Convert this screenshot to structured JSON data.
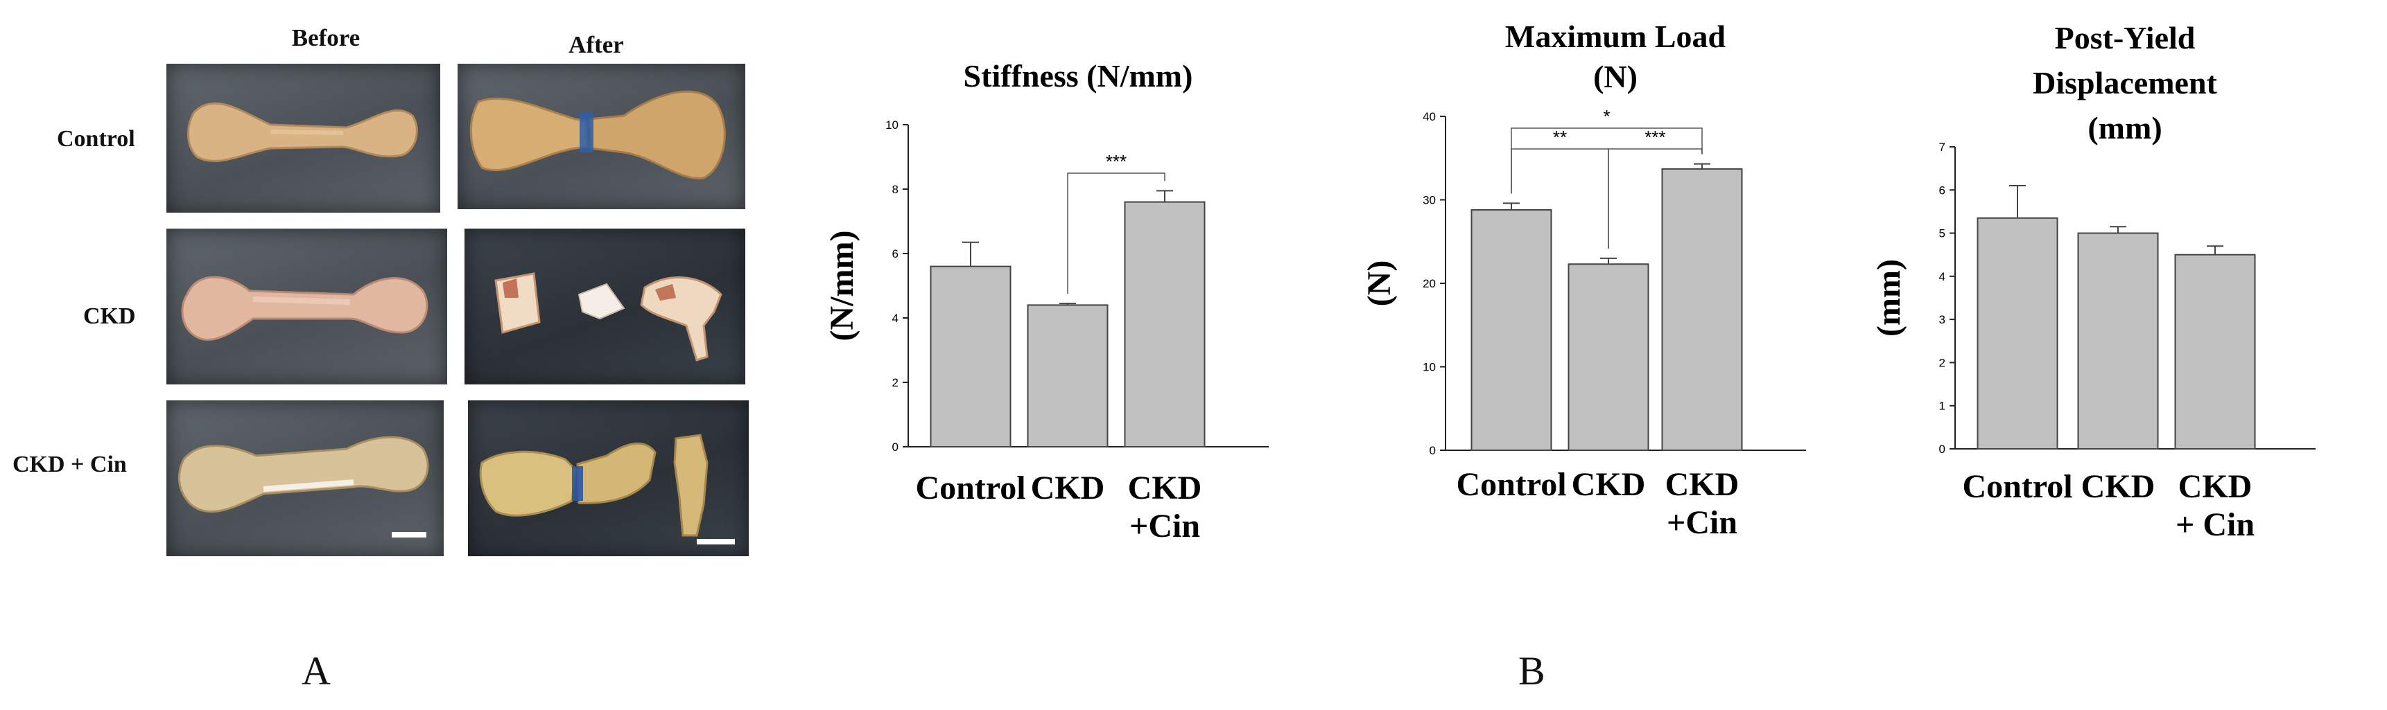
{
  "panel_a": {
    "col_headers": [
      "Before",
      "After"
    ],
    "row_labels": [
      "Control",
      "CKD",
      "CKD + Cin"
    ],
    "letter": "A"
  },
  "panel_b": {
    "letter": "B"
  },
  "colors": {
    "bar_fill": "#c0c0c0",
    "bar_stroke": "#444444",
    "axis": "#222222"
  },
  "chart_data": [
    {
      "type": "bar",
      "title": [
        "Stiffness (N/mm)"
      ],
      "ylabel": "(N/mm)",
      "categories": [
        [
          "Control"
        ],
        [
          "CKD"
        ],
        [
          "CKD",
          "+Cin"
        ]
      ],
      "values": [
        5.6,
        4.4,
        7.6
      ],
      "errors": [
        0.75,
        0.05,
        0.35
      ],
      "ylim": [
        0,
        10
      ],
      "yticks": [
        0,
        2,
        4,
        6,
        8,
        10
      ],
      "tick_labels": [
        "0",
        "2",
        "4",
        "6",
        "8",
        "10"
      ],
      "grid": false,
      "significance": [
        {
          "from": 1,
          "to": 2,
          "label": "***"
        }
      ]
    },
    {
      "type": "bar",
      "title": [
        "Maximum Load",
        "(N)"
      ],
      "ylabel": "(N)",
      "categories": [
        [
          "Control"
        ],
        [
          "CKD"
        ],
        [
          "CKD",
          "+Cin"
        ]
      ],
      "values": [
        28.8,
        22.3,
        33.7
      ],
      "errors": [
        0.8,
        0.7,
        0.6
      ],
      "ylim": [
        0,
        40
      ],
      "yticks": [
        0,
        10,
        20,
        30,
        40
      ],
      "tick_labels": [
        "0",
        "10",
        "20",
        "30",
        "40"
      ],
      "grid": false,
      "significance": [
        {
          "from": 0,
          "to": 2,
          "label": "*"
        },
        {
          "from": 0,
          "to": 1,
          "label": "**"
        },
        {
          "from": 1,
          "to": 2,
          "label": "***"
        }
      ]
    },
    {
      "type": "bar",
      "title": [
        "Post-Yield",
        "Displacement",
        "(mm)"
      ],
      "ylabel": "(mm)",
      "categories": [
        [
          "Control"
        ],
        [
          "CKD"
        ],
        [
          "CKD",
          "+ Cin"
        ]
      ],
      "values": [
        5.35,
        5.0,
        4.5
      ],
      "errors": [
        0.75,
        0.15,
        0.2
      ],
      "ylim": [
        0,
        7
      ],
      "yticks": [
        0,
        1,
        2,
        3,
        4,
        5,
        6,
        7
      ],
      "tick_labels": [
        "0",
        "1",
        "2",
        "3",
        "4",
        "5",
        "6",
        "7"
      ],
      "grid": false,
      "significance": []
    }
  ]
}
